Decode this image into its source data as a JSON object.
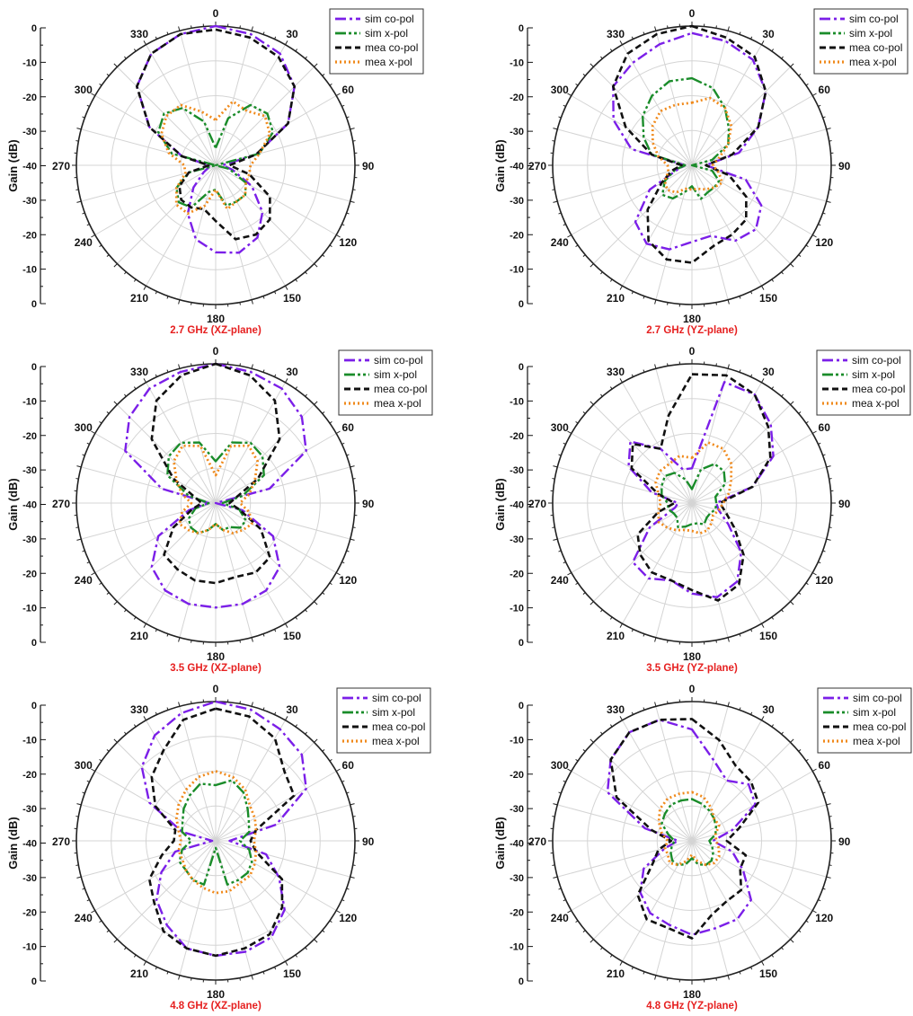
{
  "legend": {
    "entries": [
      {
        "key": "sim_co",
        "label": "sim co-pol",
        "color": "#7b1fe8",
        "dash": "dashdot"
      },
      {
        "key": "sim_x",
        "label": "sim x-pol",
        "color": "#1a8c2a",
        "dash": "dashdotdot"
      },
      {
        "key": "mea_co",
        "label": "mea co-pol",
        "color": "#111111",
        "dash": "dash"
      },
      {
        "key": "mea_x",
        "label": "mea x-pol",
        "color": "#f08a1c",
        "dash": "dot"
      }
    ]
  },
  "axis": {
    "ylabel": "Gain (dB)",
    "ticks": [
      "0",
      "-10",
      "-20",
      "-30",
      "-40",
      "-30",
      "-20",
      "-10",
      "0"
    ],
    "angle_labels": [
      "0",
      "30",
      "60",
      "90",
      "120",
      "150",
      "180",
      "210",
      "240",
      "270",
      "300",
      "330"
    ]
  },
  "chart_data": [
    {
      "type": "polar",
      "title": "2.7 GHz (XZ-plane)",
      "rlim": [
        -40,
        0
      ],
      "angles": [
        0,
        15,
        30,
        45,
        60,
        75,
        90,
        105,
        120,
        135,
        150,
        165,
        180,
        195,
        210,
        225,
        240,
        255,
        270,
        285,
        300,
        315,
        330,
        345
      ],
      "series": [
        {
          "name": "sim co-pol",
          "values": [
            0,
            -1,
            -3,
            -8,
            -16,
            -28,
            -38,
            -35,
            -28,
            -21,
            -16,
            -14,
            -15,
            -18,
            -24,
            -31,
            -36,
            -38,
            -38,
            -30,
            -18,
            -8,
            -3,
            -1
          ]
        },
        {
          "name": "sim x-pol",
          "values": [
            -35,
            -26,
            -20,
            -19,
            -21,
            -27,
            -40,
            -36,
            -30,
            -28,
            -28,
            -28,
            -33,
            -32,
            -26,
            -25,
            -27,
            -32,
            -40,
            -27,
            -21,
            -19,
            -21,
            -27
          ]
        },
        {
          "name": "mea co-pol",
          "values": [
            -1,
            -2,
            -4,
            -8,
            -16,
            -28,
            -36,
            -30,
            -22,
            -18,
            -17,
            -18,
            -24,
            -27,
            -26,
            -26,
            -28,
            -32,
            -38,
            -30,
            -18,
            -8,
            -3,
            -1
          ]
        },
        {
          "name": "mea x-pol",
          "values": [
            -27,
            -21,
            -22,
            -20,
            -22,
            -27,
            -30,
            -30,
            -30,
            -28,
            -28,
            -27,
            -33,
            -28,
            -24,
            -24,
            -27,
            -31,
            -31,
            -26,
            -22,
            -20,
            -20,
            -24
          ]
        }
      ]
    },
    {
      "type": "polar",
      "title": "2.7 GHz (YZ-plane)",
      "rlim": [
        -40,
        0
      ],
      "angles": [
        0,
        15,
        30,
        45,
        60,
        75,
        90,
        105,
        120,
        135,
        150,
        165,
        180,
        195,
        210,
        225,
        240,
        255,
        270,
        285,
        300,
        315,
        330,
        345
      ],
      "series": [
        {
          "name": "sim co-pol",
          "values": [
            -2,
            -3,
            -5,
            -10,
            -18,
            -26,
            -36,
            -24,
            -17,
            -14,
            -15,
            -19,
            -18,
            -15,
            -14,
            -17,
            -26,
            -36,
            -38,
            -22,
            -14,
            -8,
            -6,
            -4
          ]
        },
        {
          "name": "sim x-pol",
          "values": [
            -15,
            -17,
            -21,
            -25,
            -28,
            -34,
            -40,
            -34,
            -31,
            -31,
            -31,
            -30,
            -34,
            -32,
            -29,
            -28,
            -31,
            -35,
            -38,
            -28,
            -24,
            -20,
            -17,
            -15
          ]
        },
        {
          "name": "mea co-pol",
          "values": [
            0,
            -2,
            -4,
            -10,
            -18,
            -28,
            -36,
            -29,
            -22,
            -18,
            -17,
            -16,
            -12,
            -12,
            -15,
            -22,
            -30,
            -34,
            -37,
            -28,
            -18,
            -8,
            -3,
            -1
          ]
        },
        {
          "name": "mea x-pol",
          "values": [
            -22,
            -20,
            -21,
            -24,
            -28,
            -32,
            -34,
            -32,
            -30,
            -31,
            -32,
            -33,
            -33,
            -33,
            -31,
            -30,
            -31,
            -33,
            -33,
            -30,
            -27,
            -24,
            -22,
            -22
          ]
        }
      ]
    },
    {
      "type": "polar",
      "title": "3.5 GHz (XZ-plane)",
      "rlim": [
        -40,
        0
      ],
      "angles": [
        0,
        15,
        30,
        45,
        60,
        75,
        90,
        105,
        120,
        135,
        150,
        165,
        180,
        195,
        210,
        225,
        240,
        255,
        270,
        285,
        300,
        315,
        330,
        345
      ],
      "series": [
        {
          "name": "sim co-pol",
          "values": [
            0,
            -1,
            -2,
            -5,
            -10,
            -24,
            -40,
            -32,
            -21,
            -14,
            -11,
            -10,
            -10,
            -10,
            -11,
            -14,
            -21,
            -32,
            -38,
            -24,
            -10,
            -5,
            -2,
            -1
          ]
        },
        {
          "name": "sim x-pol",
          "values": [
            -28,
            -22,
            -20,
            -21,
            -24,
            -32,
            -38,
            -33,
            -30,
            -30,
            -32,
            -32,
            -34,
            -32,
            -30,
            -30,
            -31,
            -34,
            -38,
            -32,
            -24,
            -21,
            -20,
            -22
          ]
        },
        {
          "name": "mea co-pol",
          "values": [
            0,
            -2,
            -6,
            -14,
            -26,
            -34,
            -36,
            -33,
            -25,
            -18,
            -17,
            -18,
            -17,
            -17,
            -18,
            -19,
            -26,
            -33,
            -36,
            -34,
            -26,
            -14,
            -6,
            -2
          ]
        },
        {
          "name": "mea x-pol",
          "values": [
            -32,
            -23,
            -21,
            -23,
            -27,
            -30,
            -33,
            -30,
            -28,
            -29,
            -30,
            -32,
            -34,
            -32,
            -30,
            -29,
            -28,
            -30,
            -33,
            -30,
            -27,
            -23,
            -21,
            -23
          ]
        }
      ]
    },
    {
      "type": "polar",
      "title": "3.5 GHz (YZ-plane)",
      "rlim": [
        -40,
        0
      ],
      "angles": [
        0,
        15,
        30,
        45,
        60,
        75,
        90,
        105,
        120,
        135,
        150,
        165,
        180,
        195,
        210,
        225,
        240,
        255,
        270,
        285,
        300,
        315,
        330,
        345
      ],
      "series": [
        {
          "name": "sim co-pol",
          "values": [
            -30,
            -4,
            -4,
            -8,
            -13,
            -22,
            -33,
            -32,
            -28,
            -20,
            -14,
            -12,
            -14,
            -17,
            -15,
            -16,
            -26,
            -35,
            -36,
            -28,
            -19,
            -15,
            -22,
            -30
          ]
        },
        {
          "name": "sim x-pol",
          "values": [
            -36,
            -30,
            -27,
            -27,
            -29,
            -33,
            -33,
            -33,
            -34,
            -34,
            -33,
            -34,
            -34,
            -33,
            -32,
            -34,
            -34,
            -33,
            -33,
            -31,
            -30,
            -29,
            -30,
            -33
          ]
        },
        {
          "name": "mea co-pol",
          "values": [
            -3,
            -2,
            -4,
            -9,
            -14,
            -22,
            -32,
            -30,
            -26,
            -19,
            -13,
            -11,
            -15,
            -17,
            -17,
            -19,
            -22,
            -30,
            -35,
            -30,
            -20,
            -16,
            -22,
            -14
          ]
        },
        {
          "name": "mea x-pol",
          "values": [
            -27,
            -22,
            -22,
            -24,
            -27,
            -29,
            -31,
            -32,
            -33,
            -32,
            -31,
            -31,
            -32,
            -32,
            -31,
            -30,
            -29,
            -30,
            -31,
            -30,
            -28,
            -27,
            -27,
            -26
          ]
        }
      ]
    },
    {
      "type": "polar",
      "title": "4.8 GHz (XZ-plane)",
      "rlim": [
        -40,
        0
      ],
      "angles": [
        0,
        15,
        30,
        45,
        60,
        75,
        90,
        105,
        120,
        135,
        150,
        165,
        180,
        195,
        210,
        225,
        240,
        255,
        270,
        285,
        300,
        315,
        330,
        345
      ],
      "series": [
        {
          "name": "sim co-pol",
          "values": [
            0,
            -1,
            -3,
            -5,
            -10,
            -22,
            -36,
            -25,
            -19,
            -12,
            -8,
            -7,
            -7,
            -8,
            -12,
            -16,
            -22,
            -28,
            -39,
            -30,
            -18,
            -10,
            -5,
            -2
          ]
        },
        {
          "name": "sim x-pol",
          "values": [
            -24,
            -22,
            -24,
            -27,
            -29,
            -30,
            -33,
            -30,
            -28,
            -27,
            -27,
            -27,
            -38,
            -27,
            -27,
            -28,
            -28,
            -30,
            -33,
            -30,
            -29,
            -27,
            -25,
            -23
          ]
        },
        {
          "name": "mea co-pol",
          "values": [
            -2,
            -3,
            -6,
            -12,
            -14,
            -28,
            -30,
            -28,
            -18,
            -13,
            -9,
            -8,
            -7,
            -8,
            -10,
            -15,
            -18,
            -24,
            -28,
            -28,
            -20,
            -14,
            -10,
            -4
          ]
        },
        {
          "name": "mea x-pol",
          "values": [
            -20,
            -21,
            -23,
            -26,
            -27,
            -28,
            -29,
            -28,
            -27,
            -26,
            -26,
            -25,
            -25,
            -26,
            -27,
            -28,
            -29,
            -29,
            -30,
            -29,
            -27,
            -25,
            -23,
            -21
          ]
        }
      ]
    },
    {
      "type": "polar",
      "title": "4.8 GHz (YZ-plane)",
      "rlim": [
        -40,
        0
      ],
      "angles": [
        0,
        15,
        30,
        45,
        60,
        75,
        90,
        105,
        120,
        135,
        150,
        165,
        180,
        195,
        210,
        225,
        240,
        255,
        270,
        285,
        300,
        315,
        330,
        345
      ],
      "series": [
        {
          "name": "sim co-pol",
          "values": [
            -8,
            -16,
            -20,
            -17,
            -19,
            -28,
            -34,
            -28,
            -23,
            -16,
            -14,
            -14,
            -13,
            -15,
            -16,
            -19,
            -24,
            -32,
            -36,
            -26,
            -12,
            -7,
            -4,
            -4
          ]
        },
        {
          "name": "sim x-pol",
          "values": [
            -28,
            -29,
            -30,
            -31,
            -32,
            -33,
            -35,
            -34,
            -33,
            -32,
            -32,
            -33,
            -35,
            -33,
            -32,
            -32,
            -33,
            -34,
            -35,
            -33,
            -30,
            -29,
            -28,
            -28
          ]
        },
        {
          "name": "mea co-pol",
          "values": [
            -5,
            -10,
            -15,
            -16,
            -18,
            -26,
            -30,
            -24,
            -24,
            -20,
            -20,
            -18,
            -12,
            -14,
            -14,
            -18,
            -27,
            -30,
            -34,
            -28,
            -15,
            -7,
            -4,
            -4
          ]
        },
        {
          "name": "mea x-pol",
          "values": [
            -26,
            -27,
            -29,
            -31,
            -31,
            -33,
            -33,
            -32,
            -31,
            -31,
            -32,
            -34,
            -36,
            -34,
            -32,
            -31,
            -32,
            -32,
            -33,
            -31,
            -29,
            -27,
            -26,
            -26
          ]
        }
      ]
    }
  ]
}
